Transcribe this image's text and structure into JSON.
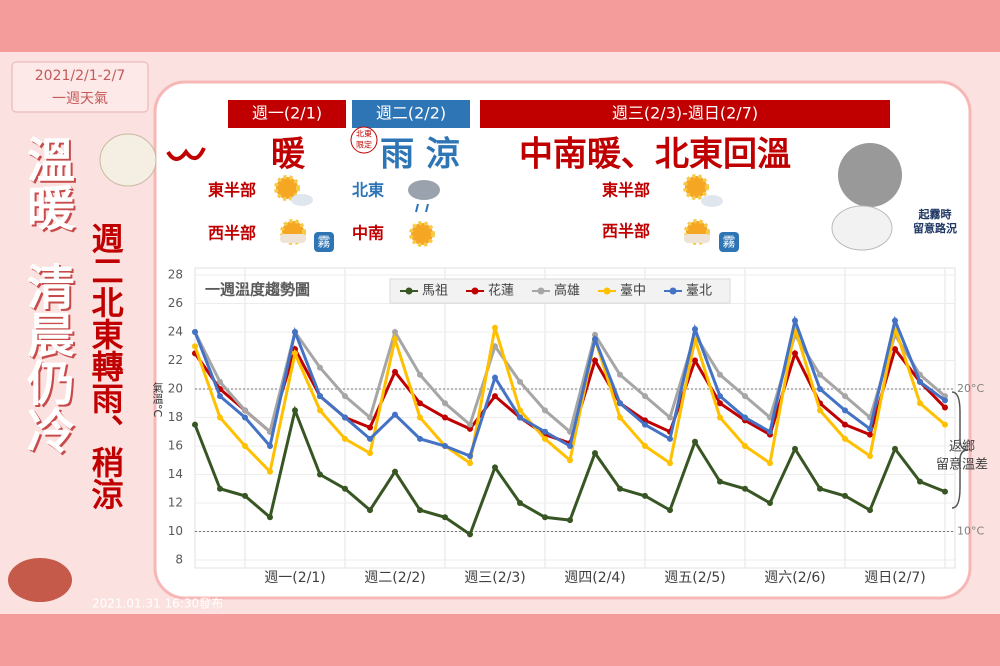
{
  "date_range": "2021/2/1-2/7",
  "period_label": "一週天氣",
  "headline": [
    "溫暖",
    "清晨仍冷"
  ],
  "subheadline": "週二北東轉雨、稍涼",
  "periods": [
    {
      "label": "週一(2/1)",
      "summary": "暖",
      "regions": [
        {
          "name": "東半部"
        },
        {
          "name": "西半部",
          "badge": "霧"
        }
      ]
    },
    {
      "label": "週二(2/2)",
      "summary": "雨 涼",
      "badge": [
        "北東",
        "限定"
      ],
      "regions": [
        {
          "name": "北東"
        },
        {
          "name": "中南"
        }
      ]
    },
    {
      "label": "週三(2/3)-週日(2/7)",
      "summary": "中南暖、北東回溫",
      "regions": [
        {
          "name": "東半部"
        },
        {
          "name": "西半部",
          "badge": "霧"
        }
      ]
    }
  ],
  "fog_note": [
    "起霧時",
    "留意路況"
  ],
  "issued": "2021.01.31 16:30發布",
  "chart_data": {
    "type": "line",
    "title": "一週溫度趨勢圖",
    "y_label": "氣溫°C",
    "categories": [
      null,
      null,
      null,
      null,
      "週一(2/1)",
      null,
      null,
      null,
      "週二(2/2)",
      null,
      null,
      null,
      "週三(2/3)",
      null,
      null,
      null,
      "週四(2/4)",
      null,
      null,
      null,
      "週五(2/5)",
      null,
      null,
      null,
      "週六(2/6)",
      null,
      null,
      null,
      "週日(2/7)",
      null,
      null
    ],
    "ylim": [
      8,
      28
    ],
    "yticks": [
      8,
      10,
      12,
      14,
      16,
      18,
      20,
      22,
      24,
      26,
      28
    ],
    "grid": true,
    "reference_lines": [
      {
        "value": 20,
        "label": "20°C"
      },
      {
        "value": 10,
        "label": "10°C"
      }
    ],
    "annotation": [
      "返鄉",
      "留意溫差"
    ],
    "series": [
      {
        "name": "馬祖",
        "color": "#375623",
        "values": [
          17.5,
          13,
          12.5,
          11,
          18.5,
          14,
          13,
          11.5,
          14.2,
          11.5,
          11,
          9.8,
          14.5,
          12,
          11,
          10.8,
          15.5,
          13,
          12.5,
          11.5,
          16.3,
          13.5,
          13,
          12,
          15.8,
          13,
          12.5,
          11.5,
          15.8,
          13.5,
          12.8
        ]
      },
      {
        "name": "花蓮",
        "color": "#c00000",
        "values": [
          22.5,
          20,
          18.5,
          17,
          22.8,
          19.5,
          18,
          17.3,
          21.2,
          19,
          18,
          17.2,
          19.5,
          18,
          16.8,
          16.2,
          22,
          19,
          17.8,
          17,
          22,
          19,
          17.8,
          16.8,
          22.5,
          19,
          17.5,
          16.8,
          22.8,
          20.5,
          18.7
        ]
      },
      {
        "name": "高雄",
        "color": "#a6a6a6",
        "values": [
          24,
          20.5,
          18.5,
          17,
          24,
          21.5,
          19.5,
          18,
          24,
          21,
          19,
          17.5,
          23,
          20.5,
          18.5,
          17,
          23.8,
          21,
          19.5,
          18,
          23.8,
          21,
          19.5,
          18,
          23.8,
          21,
          19.5,
          18,
          23.8,
          21,
          19.5
        ]
      },
      {
        "name": "臺中",
        "color": "#ffc000",
        "values": [
          23,
          18,
          16,
          14.2,
          22.5,
          18.5,
          16.5,
          15.5,
          23.5,
          18,
          16,
          14.8,
          24.3,
          18.5,
          16.5,
          15,
          23.5,
          18,
          16,
          14.8,
          23.5,
          18,
          16,
          14.8,
          24.3,
          18.5,
          16.5,
          15.3,
          24.3,
          19,
          17.5
        ]
      },
      {
        "name": "臺北",
        "color": "#4472c4",
        "values": [
          24,
          19.5,
          18,
          16,
          24,
          19.5,
          18,
          16.5,
          18.2,
          16.5,
          16,
          15.3,
          20.8,
          18,
          17,
          16,
          23.5,
          19,
          17.5,
          16.5,
          24.2,
          19.5,
          18,
          17,
          24.8,
          20,
          18.5,
          17.2,
          24.8,
          20.5,
          19.2
        ]
      }
    ]
  }
}
